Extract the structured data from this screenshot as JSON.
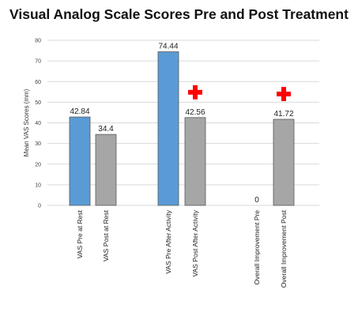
{
  "chart_data": {
    "type": "bar",
    "title": "Visual Analog Scale Scores Pre and Post Treatment",
    "ylabel": "Mean VAS Scores (mm)",
    "xlabel": "",
    "ylim": [
      0,
      80
    ],
    "yticks": [
      0,
      10,
      20,
      30,
      40,
      50,
      60,
      70,
      80
    ],
    "grid": true,
    "categories": [
      "VAS Pre at Rest",
      "VAS Post at Rest",
      "VAS Pre After Activity",
      "VAS Post After Activity",
      "Overall Improvement Pre",
      "Overall Improvement Post"
    ],
    "values": [
      42.84,
      34.4,
      74.44,
      42.56,
      0,
      41.72
    ],
    "data_labels": [
      "42.84",
      "34.4",
      "74.44",
      "42.56",
      "0",
      "41.72"
    ],
    "bar_colors": [
      "#5b9bd5",
      "#a6a6a6",
      "#5b9bd5",
      "#a6a6a6",
      "#5b9bd5",
      "#a6a6a6"
    ],
    "significance_markers": [
      false,
      false,
      false,
      true,
      false,
      true
    ],
    "marker_color": "#ff0000",
    "marker_icon": "red-cross-icon"
  }
}
